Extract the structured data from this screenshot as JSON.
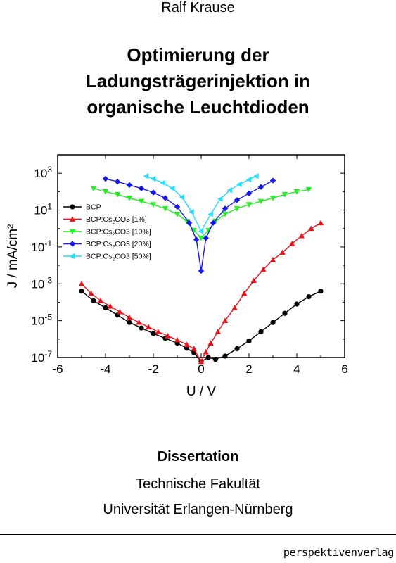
{
  "cover": {
    "author": "Ralf Krause",
    "title_lines": [
      "Optimierung der",
      "Ladungsträgerinjektion in",
      "organische Leuchtdioden"
    ],
    "degree": "Dissertation",
    "faculty": "Technische Fakultät",
    "university": "Universität Erlangen-Nürnberg",
    "publisher": "perspektivenverlag"
  },
  "chart_data": {
    "type": "scatter",
    "xlabel": "U / V",
    "ylabel": "J / mA/cm²",
    "xlim": [
      -6,
      6
    ],
    "ylim_log10": [
      -7,
      4
    ],
    "y_scale": "log",
    "x_ticks": [
      "-6",
      "-4",
      "-2",
      "0",
      "2",
      "4",
      "6"
    ],
    "y_ticks": [
      {
        "base": "10",
        "exp": "-7"
      },
      {
        "base": "10",
        "exp": "-5"
      },
      {
        "base": "10",
        "exp": "-3"
      },
      {
        "base": "10",
        "exp": "-1"
      },
      {
        "base": "10",
        "exp": "1"
      },
      {
        "base": "10",
        "exp": "3"
      }
    ],
    "legend_position": "left-middle",
    "series": [
      {
        "name": "BCP",
        "sub": "",
        "suffix": "",
        "color": "#000000",
        "marker": "circle",
        "points": [
          [
            -5,
            0.0004
          ],
          [
            -4.5,
            0.00012
          ],
          [
            -4,
            5e-05
          ],
          [
            -3.5,
            2e-05
          ],
          [
            -3,
            8e-06
          ],
          [
            -2.5,
            4e-06
          ],
          [
            -2,
            2e-06
          ],
          [
            -1.5,
            1.1e-06
          ],
          [
            -1,
            6e-07
          ],
          [
            -0.6,
            3.2e-07
          ],
          [
            -0.3,
            1.8e-07
          ],
          [
            0,
            6e-08
          ],
          [
            0.3,
            1e-07
          ],
          [
            0.6,
            8e-08
          ],
          [
            1,
            1.2e-07
          ],
          [
            1.5,
            3e-07
          ],
          [
            2,
            8e-07
          ],
          [
            2.5,
            2.5e-06
          ],
          [
            3,
            8e-06
          ],
          [
            3.5,
            2.5e-05
          ],
          [
            4,
            8e-05
          ],
          [
            4.5,
            0.0002
          ],
          [
            5,
            0.0004
          ]
        ]
      },
      {
        "name": "BCP:Cs",
        "sub": "2",
        "suffix": "CO3 [1%]",
        "color": "#e8141c",
        "marker": "triangle-up",
        "points": [
          [
            -5,
            0.001
          ],
          [
            -4.6,
            0.0003
          ],
          [
            -4.2,
            0.00012
          ],
          [
            -3.8,
            6e-05
          ],
          [
            -3.4,
            3e-05
          ],
          [
            -3,
            1.5e-05
          ],
          [
            -2.6,
            8e-06
          ],
          [
            -2.2,
            4.5e-06
          ],
          [
            -1.8,
            2.5e-06
          ],
          [
            -1.4,
            1.5e-06
          ],
          [
            -1,
            9e-07
          ],
          [
            -0.6,
            5e-07
          ],
          [
            -0.3,
            3e-07
          ],
          [
            0,
            6e-08
          ],
          [
            0.2,
            2e-07
          ],
          [
            0.4,
            6e-07
          ],
          [
            0.7,
            2.5e-06
          ],
          [
            1,
            1e-05
          ],
          [
            1.4,
            5e-05
          ],
          [
            1.8,
            0.0003
          ],
          [
            2.2,
            0.0015
          ],
          [
            2.6,
            0.006
          ],
          [
            3,
            0.02
          ],
          [
            3.4,
            0.05
          ],
          [
            3.8,
            0.15
          ],
          [
            4.2,
            0.4
          ],
          [
            4.6,
            1
          ],
          [
            5,
            2
          ]
        ]
      },
      {
        "name": "BCP:Cs",
        "sub": "2",
        "suffix": "CO3 [10%]",
        "color": "#22ee22",
        "marker": "triangle-down",
        "points": [
          [
            -4.5,
            150
          ],
          [
            -4,
            100
          ],
          [
            -3.5,
            70
          ],
          [
            -3,
            45
          ],
          [
            -2.5,
            30
          ],
          [
            -2,
            20
          ],
          [
            -1.5,
            12
          ],
          [
            -1,
            6
          ],
          [
            -0.6,
            2.5
          ],
          [
            -0.3,
            0.8
          ],
          [
            0,
            0.3
          ],
          [
            0.3,
            0.8
          ],
          [
            0.6,
            2.5
          ],
          [
            1,
            6
          ],
          [
            1.5,
            12
          ],
          [
            2,
            20
          ],
          [
            2.5,
            30
          ],
          [
            3,
            45
          ],
          [
            3.5,
            70
          ],
          [
            4,
            100
          ],
          [
            4.5,
            130
          ]
        ]
      },
      {
        "name": "BCP:Cs",
        "sub": "2",
        "suffix": "CO3 [20%]",
        "color": "#1515ee",
        "marker": "diamond",
        "points": [
          [
            -4,
            500
          ],
          [
            -3.5,
            350
          ],
          [
            -3,
            230
          ],
          [
            -2.5,
            150
          ],
          [
            -2,
            90
          ],
          [
            -1.5,
            45
          ],
          [
            -1,
            15
          ],
          [
            -0.5,
            2
          ],
          [
            -0.2,
            0.25
          ],
          [
            0,
            0.005
          ],
          [
            0.2,
            0.3
          ],
          [
            0.5,
            2
          ],
          [
            1,
            12
          ],
          [
            1.5,
            35
          ],
          [
            2,
            80
          ],
          [
            2.5,
            180
          ],
          [
            3,
            400
          ]
        ]
      },
      {
        "name": "BCP:Cs",
        "sub": "2",
        "suffix": "CO3 [50%]",
        "color": "#22ddff",
        "marker": "triangle-left",
        "points": [
          [
            -2.3,
            700
          ],
          [
            -2,
            500
          ],
          [
            -1.6,
            300
          ],
          [
            -1.2,
            150
          ],
          [
            -0.8,
            50
          ],
          [
            -0.4,
            8
          ],
          [
            0,
            0.7
          ],
          [
            0.4,
            6
          ],
          [
            0.8,
            40
          ],
          [
            1.2,
            120
          ],
          [
            1.6,
            250
          ],
          [
            2,
            450
          ],
          [
            2.3,
            700
          ]
        ]
      }
    ]
  }
}
